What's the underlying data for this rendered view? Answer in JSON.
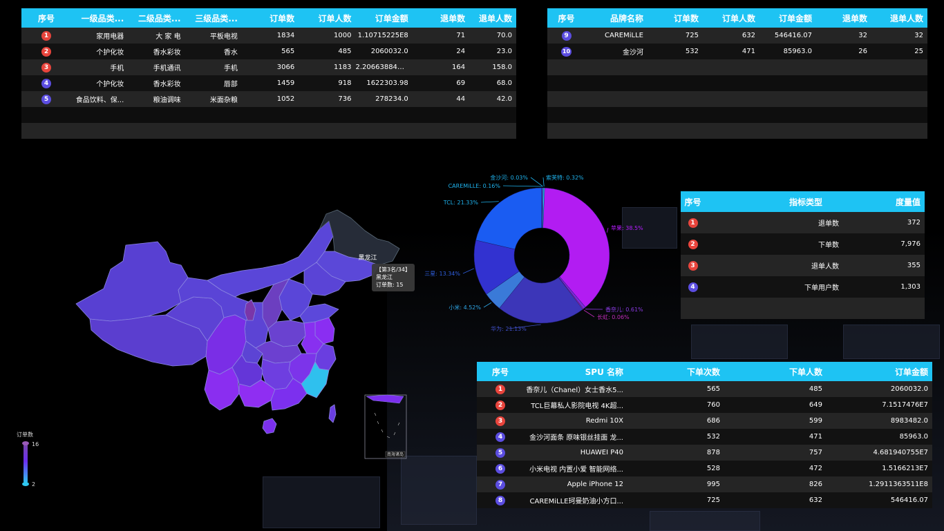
{
  "table_category": {
    "headers": [
      "序号",
      "一级品类...",
      "二级品类...",
      "三级品类...",
      "订单数",
      "订单人数",
      "订单金额",
      "退单数",
      "退单人数"
    ],
    "rows": [
      {
        "rank": "1",
        "l1": "家用电器",
        "l2": "大 家 电",
        "l3": "平板电视",
        "orders": "1834",
        "buyers": "1000",
        "amount": "1.10715225E8",
        "refunds": "71",
        "refund_users": "70.0"
      },
      {
        "rank": "2",
        "l1": "个护化妆",
        "l2": "香水彩妆",
        "l3": "香水",
        "orders": "565",
        "buyers": "485",
        "amount": "2060032.0",
        "refunds": "24",
        "refund_users": "23.0"
      },
      {
        "rank": "3",
        "l1": "手机",
        "l2": "手机通讯",
        "l3": "手机",
        "orders": "3066",
        "buyers": "1183",
        "amount": "2.206638846...",
        "refunds": "164",
        "refund_users": "158.0"
      },
      {
        "rank": "4",
        "l1": "个护化妆",
        "l2": "香水彩妆",
        "l3": "唇部",
        "orders": "1459",
        "buyers": "918",
        "amount": "1622303.98",
        "refunds": "69",
        "refund_users": "68.0"
      },
      {
        "rank": "5",
        "l1": "食品饮料、保...",
        "l2": "粮油调味",
        "l3": "米面杂粮",
        "orders": "1052",
        "buyers": "736",
        "amount": "278234.0",
        "refunds": "44",
        "refund_users": "42.0"
      }
    ]
  },
  "table_brand": {
    "headers": [
      "序号",
      "品牌名称",
      "订单数",
      "订单人数",
      "订单金额",
      "退单数",
      "退单人数"
    ],
    "rows": [
      {
        "rank": "9",
        "brand": "CAREMiLLE",
        "orders": "725",
        "buyers": "632",
        "amount": "546416.07",
        "refunds": "32",
        "refund_users": "32"
      },
      {
        "rank": "10",
        "brand": "金沙河",
        "orders": "532",
        "buyers": "471",
        "amount": "85963.0",
        "refunds": "26",
        "refund_users": "25"
      }
    ]
  },
  "table_metrics": {
    "headers": [
      "序号",
      "指标类型",
      "度量值"
    ],
    "rows": [
      {
        "rank": "1",
        "type": "退单数",
        "value": "372"
      },
      {
        "rank": "2",
        "type": "下单数",
        "value": "7,976"
      },
      {
        "rank": "3",
        "type": "退单人数",
        "value": "355"
      },
      {
        "rank": "4",
        "type": "下单用户数",
        "value": "1,303"
      }
    ]
  },
  "table_spu": {
    "headers": [
      "序号",
      "SPU 名称",
      "下单次数",
      "下单人数",
      "订单金额"
    ],
    "rows": [
      {
        "rank": "1",
        "name": "香奈儿（Chanel）女士香水5...",
        "orders": "565",
        "buyers": "485",
        "amount": "2060032.0"
      },
      {
        "rank": "2",
        "name": "TCL巨幕私人影院电视 4K超...",
        "orders": "760",
        "buyers": "649",
        "amount": "7.1517476E7"
      },
      {
        "rank": "3",
        "name": "Redmi 10X",
        "orders": "686",
        "buyers": "599",
        "amount": "8983482.0"
      },
      {
        "rank": "4",
        "name": "金沙河面条 原味银丝挂面 龙...",
        "orders": "532",
        "buyers": "471",
        "amount": "85963.0"
      },
      {
        "rank": "5",
        "name": "HUAWEI P40",
        "orders": "878",
        "buyers": "757",
        "amount": "4.681940755E7"
      },
      {
        "rank": "6",
        "name": "小米电视 内置小爱 智能网络...",
        "orders": "528",
        "buyers": "472",
        "amount": "1.5166213E7"
      },
      {
        "rank": "7",
        "name": "Apple iPhone 12",
        "orders": "995",
        "buyers": "826",
        "amount": "1.2911363511E8"
      },
      {
        "rank": "8",
        "name": "CAREMiLLE珂曼奶油小方口...",
        "orders": "725",
        "buyers": "632",
        "amount": "546416.07"
      }
    ]
  },
  "map": {
    "tooltip_rank": "【第3名/34】",
    "tooltip_province": "黑龙江",
    "tooltip_value": "订单数: 15",
    "region_label": "黑龙江",
    "inset_label": "南海诸岛",
    "legend_title": "订单数",
    "legend_max": "16",
    "legend_min": "2"
  },
  "chart_data": {
    "type": "pie",
    "categories": [
      "苹果",
      "华为",
      "小米",
      "三星",
      "TCL",
      "CAREMiLLE",
      "金沙河",
      "索芙特",
      "香奈儿",
      "长虹"
    ],
    "values": [
      38.5,
      21.13,
      4.52,
      13.34,
      21.33,
      0.16,
      0.03,
      0.32,
      0.61,
      0.06
    ],
    "labels": [
      "苹果: 38.5%",
      "华为: 21.13%",
      "小米: 4.52%",
      "三星: 13.34%",
      "TCL: 21.33%",
      "CAREMiLLE: 0.16%",
      "金沙河: 0.03%",
      "索芙特: 0.32%",
      "香奈儿: 0.61%",
      "长虹: 0.06%"
    ],
    "colors": [
      "#b21cf2",
      "#3c36b8",
      "#3a7ad8",
      "#3232d0",
      "#1a5cf2",
      "#6a3ae0",
      "#2ec0ee",
      "#27c7f0",
      "#7a2cd8",
      "#c02cb8"
    ],
    "label_colors": [
      "#b61cff",
      "#4050c8",
      "#2fa8e8",
      "#2f5fe0",
      "#1fb3ee",
      "#1fb3ee",
      "#1fb3ee",
      "#1fb3ee",
      "#8a3ae0",
      "#c02cb8"
    ]
  },
  "colors": {
    "header": "#1ec3f3",
    "rank_red": "#e8443c",
    "rank_blue": "#5b4de0"
  }
}
